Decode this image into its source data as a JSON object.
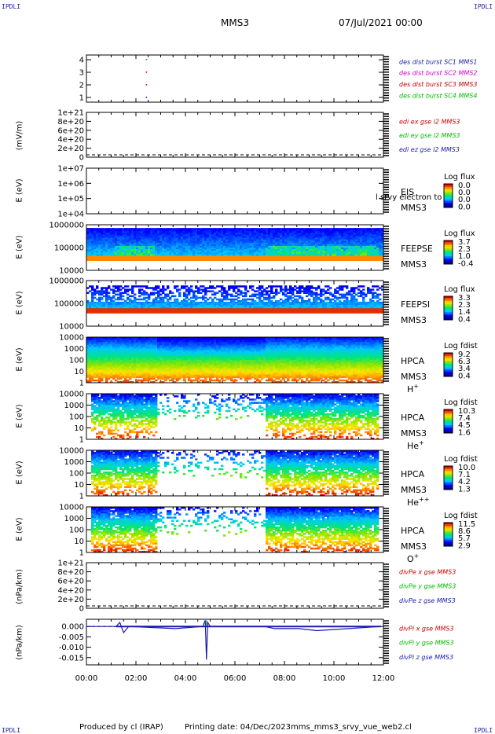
{
  "corners": {
    "tl": "IPDLI",
    "tr": "IPDLI",
    "bl": "IPDLI",
    "br": "IPDLI"
  },
  "header": {
    "title": "MMS3",
    "date": "07/Jul/2021 00:00"
  },
  "footer": {
    "produced": "Produced by cl (IRAP)",
    "printing": "Printing date: 04/Dec/2023",
    "script": "mms_mms3_srvy_vue_web2.cl"
  },
  "xaxis": {
    "ticks": [
      "00:00",
      "02:00",
      "04:00",
      "06:00",
      "08:00",
      "10:00",
      "12:00"
    ],
    "range_hours": [
      0,
      12
    ]
  },
  "colors": {
    "c1": "#1a1ab0",
    "c2": "#cc00cc",
    "c3": "#cc0000",
    "c4": "#00bb00",
    "cz": "#1a1ab0"
  },
  "chart_data": [
    {
      "type": "line",
      "id": "burst",
      "ylabels": [
        "4",
        "3",
        "2",
        "1"
      ],
      "ylim": [
        0.5,
        4.5
      ],
      "legend": [
        "des dist burst SC1 MMS1",
        "des dist burst SC2 MMS2",
        "des dist burst SC3 MMS3",
        "des dist burst SC4 MMS4"
      ]
    },
    {
      "type": "line",
      "id": "edi",
      "ylabel": "(mV/m)",
      "ylabels": [
        "1e+21",
        "8e+20",
        "6e+20",
        "4e+20",
        "2e+20",
        "0"
      ],
      "legend": [
        "edi ex gse l2 MMS3",
        "edi ey gse l2 MMS3",
        "edi ez gse l2 MMS3"
      ]
    },
    {
      "type": "heatmap",
      "id": "eis",
      "ylabel": "E (eV)",
      "ylabels": [
        "1e+07",
        "1e+06",
        "1e+05",
        "1e+04"
      ],
      "inst": "EIS",
      "sc": "MMS3",
      "overlay": "l srvy electron to",
      "cb_title": "Log flux",
      "cb": [
        "0.0",
        "0.0",
        "0.0",
        "0.0"
      ]
    },
    {
      "type": "heatmap",
      "id": "feepse",
      "ylabel": "E (eV)",
      "ylabels": [
        "1000000",
        "100000",
        "10000"
      ],
      "inst": "FEEPSE",
      "sc": "MMS3",
      "cb_title": "Log flux",
      "cb": [
        "3.7",
        "2.3",
        "1.0",
        "-0.4"
      ]
    },
    {
      "type": "heatmap",
      "id": "feepsi",
      "ylabel": "E (eV)",
      "ylabels": [
        "1000000",
        "100000",
        "10000"
      ],
      "inst": "FEEPSI",
      "sc": "MMS3",
      "cb_title": "Log flux",
      "cb": [
        "3.3",
        "2.3",
        "1.4",
        "0.4"
      ]
    },
    {
      "type": "heatmap",
      "id": "hpca_h",
      "ylabel": "E (eV)",
      "ylabels": [
        "10000",
        "1000",
        "100",
        "10",
        "1"
      ],
      "inst": "HPCA",
      "sc": "MMS3",
      "species": "H",
      "charge": "+",
      "cb_title": "Log fdist",
      "cb": [
        "9.2",
        "6.3",
        "3.4",
        "0.4"
      ]
    },
    {
      "type": "heatmap",
      "id": "hpca_he",
      "ylabel": "E (eV)",
      "ylabels": [
        "10000",
        "1000",
        "100",
        "10",
        "1"
      ],
      "inst": "HPCA",
      "sc": "MMS3",
      "species": "He",
      "charge": "+",
      "cb_title": "Log fdist",
      "cb": [
        "10.3",
        "7.4",
        "4.5",
        "1.6"
      ]
    },
    {
      "type": "heatmap",
      "id": "hpca_hepp",
      "ylabel": "E (eV)",
      "ylabels": [
        "10000",
        "1000",
        "100",
        "10",
        "1"
      ],
      "inst": "HPCA",
      "sc": "MMS3",
      "species": "He",
      "charge": "++",
      "cb_title": "Log fdist",
      "cb": [
        "10.0",
        "7.1",
        "4.2",
        "1.3"
      ]
    },
    {
      "type": "heatmap",
      "id": "hpca_o",
      "ylabel": "E (eV)",
      "ylabels": [
        "10000",
        "1000",
        "100",
        "10",
        "1"
      ],
      "inst": "HPCA",
      "sc": "MMS3",
      "species": "O",
      "charge": "+",
      "cb_title": "Log fdist",
      "cb": [
        "11.5",
        "8.6",
        "5.7",
        "2.9"
      ]
    },
    {
      "type": "line",
      "id": "divpe",
      "ylabel": "(nPa/km)",
      "ylabels": [
        "1e+21",
        "8e+20",
        "6e+20",
        "4e+20",
        "2e+20",
        "0"
      ],
      "legend": [
        "divPe x gse MMS3",
        "divPe y gse MMS3",
        "divPe z gse MMS3"
      ]
    },
    {
      "type": "line",
      "id": "divpi",
      "ylabel": "(nPa/km)",
      "ylabels": [
        "0.000",
        "-0.005",
        "-0.010",
        "-0.015"
      ],
      "ylim": [
        -0.0185,
        0.0035
      ],
      "legend": [
        "divPi x gse MMS3",
        "divPi y gse MMS3",
        "divPi z gse MMS3"
      ],
      "series": [
        {
          "name": "divPi z gse MMS3",
          "x": [
            0,
            1.2,
            1.35,
            1.5,
            1.7,
            3.6,
            4.7,
            4.8,
            4.85,
            4.9,
            5.0,
            7.2,
            7.6,
            8.6,
            9.3,
            11.9
          ],
          "y": [
            0,
            0,
            0.002,
            -0.003,
            0,
            -0.001,
            0,
            0.003,
            -0.016,
            0.002,
            0,
            0,
            -0.001,
            -0.001,
            -0.002,
            0
          ]
        }
      ]
    }
  ]
}
